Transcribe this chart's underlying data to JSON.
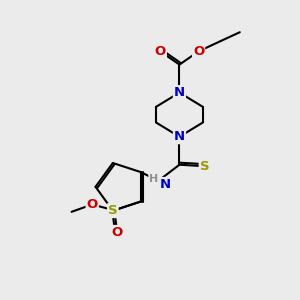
{
  "bg_color": "#ebebeb",
  "atom_colors": {
    "C": "#000000",
    "N": "#0000cc",
    "O": "#cc0000",
    "S": "#999900",
    "H": "#909090"
  },
  "bond_color": "#000000",
  "bond_width": 1.5,
  "dbo": 0.07,
  "font_size": 9.5
}
